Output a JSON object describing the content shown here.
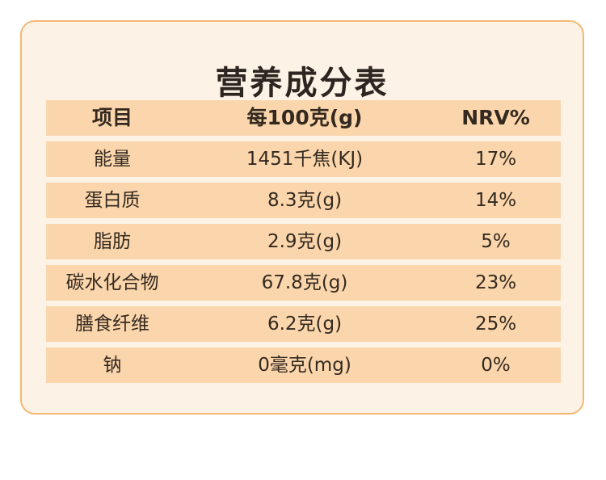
{
  "title": "营养成分表",
  "columns": [
    "项目",
    "每100克(g)",
    "NRV%"
  ],
  "rows": [
    [
      "能量",
      "1451千焦(KJ)",
      "17%"
    ],
    [
      "蛋白质",
      "8.3克(g)",
      "14%"
    ],
    [
      "脂肪",
      "2.9克(g)",
      "5%"
    ],
    [
      "碳水化合物",
      "67.8克(g)",
      "23%"
    ],
    [
      "膳食纤维",
      "6.2克(g)",
      "25%"
    ],
    [
      "钠",
      "0毫克(mg)",
      "0%"
    ]
  ],
  "colors": {
    "card_background": "#fcf2e6",
    "card_border": "#f5b872",
    "row_fill": "#fbd6ac",
    "text": "#33291f"
  }
}
